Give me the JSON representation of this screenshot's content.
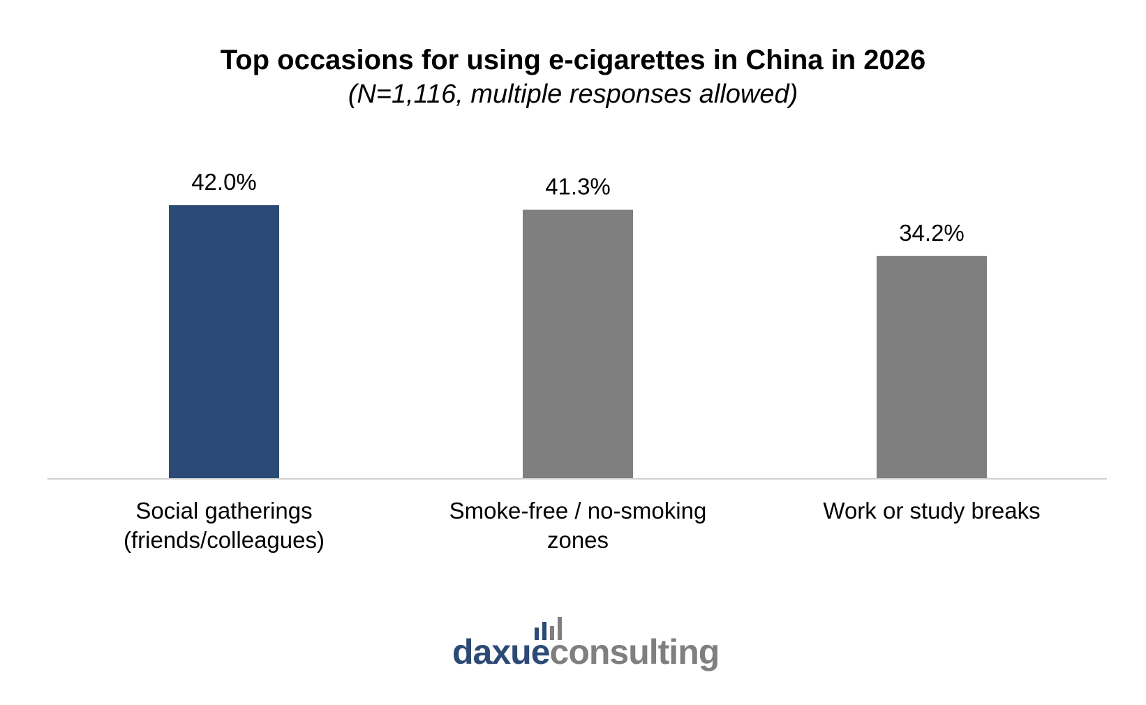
{
  "chart_data": {
    "type": "bar",
    "title": "Top occasions for using e-cigarettes in China in 2026",
    "subtitle": "(N=1,116, multiple responses allowed)",
    "categories": [
      [
        "Social gatherings",
        "(friends/colleagues)"
      ],
      [
        "Smoke-free / no-smoking",
        "zones"
      ],
      [
        "Work or study breaks"
      ]
    ],
    "values": [
      42.0,
      41.3,
      34.2
    ],
    "value_labels": [
      "42.0%",
      "41.3%",
      "34.2%"
    ],
    "colors": [
      "#2b4a75",
      "#7f7f7f",
      "#7f7f7f"
    ],
    "ylim": [
      0,
      42.0
    ],
    "grid": false,
    "legend": "none"
  },
  "logo": {
    "part1": "daxue",
    "part2": "consulting",
    "part1_color": "#2b4a75",
    "part2_color": "#7f7f7f",
    "icon": "bar-chart-icon"
  }
}
